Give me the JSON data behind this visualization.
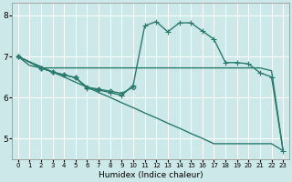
{
  "xlabel": "Humidex (Indice chaleur)",
  "background_color": "#cce8e8",
  "grid_color": "#ffffff",
  "line_color": "#2a7a6e",
  "xlim": [
    -0.5,
    23.5
  ],
  "ylim": [
    4.5,
    8.3
  ],
  "yticks": [
    5,
    6,
    7,
    8
  ],
  "xticks": [
    0,
    1,
    2,
    3,
    4,
    5,
    6,
    7,
    8,
    9,
    10,
    11,
    12,
    13,
    14,
    15,
    16,
    17,
    18,
    19,
    20,
    21,
    22,
    23
  ],
  "series": [
    {
      "x": [
        0,
        1,
        2,
        3,
        4,
        5,
        6,
        7,
        8,
        9,
        10,
        11,
        12,
        13,
        14,
        15,
        16,
        17,
        18,
        19,
        20,
        21,
        22,
        23
      ],
      "y": [
        7.0,
        6.87,
        6.75,
        6.62,
        6.5,
        6.37,
        6.25,
        6.12,
        6.0,
        5.87,
        5.75,
        5.62,
        5.5,
        5.37,
        5.25,
        5.12,
        5.0,
        4.87,
        4.87,
        4.87,
        4.87,
        4.87,
        4.87,
        4.7
      ],
      "marker": null,
      "linewidth": 1.0
    },
    {
      "x": [
        0,
        1,
        2,
        3,
        4,
        5,
        6,
        7,
        8,
        9,
        10,
        11,
        12,
        13,
        14,
        15,
        16,
        17,
        18,
        19,
        20,
        21,
        22,
        23
      ],
      "y": [
        7.0,
        6.78,
        6.72,
        6.72,
        6.72,
        6.72,
        6.72,
        6.72,
        6.72,
        6.72,
        6.72,
        6.72,
        6.72,
        6.72,
        6.72,
        6.72,
        6.72,
        6.72,
        6.72,
        6.72,
        6.72,
        6.72,
        6.65,
        4.7
      ],
      "marker": null,
      "linewidth": 1.0
    },
    {
      "x": [
        0,
        2,
        3,
        4,
        5,
        6,
        7,
        8,
        9,
        10
      ],
      "y": [
        7.0,
        6.72,
        6.62,
        6.55,
        6.48,
        6.25,
        6.2,
        6.15,
        6.1,
        6.25
      ],
      "marker": "D",
      "linewidth": 1.0
    },
    {
      "x": [
        0,
        2,
        3,
        4,
        5,
        6,
        7,
        8,
        9,
        10,
        11,
        12,
        13,
        14,
        15,
        16,
        17,
        18,
        19,
        20,
        21,
        22,
        23
      ],
      "y": [
        7.0,
        6.72,
        6.62,
        6.55,
        6.48,
        6.22,
        6.18,
        6.12,
        6.05,
        6.3,
        7.75,
        7.85,
        7.6,
        7.82,
        7.82,
        7.62,
        7.42,
        6.85,
        6.85,
        6.82,
        6.6,
        6.5,
        4.7
      ],
      "marker": "+",
      "linewidth": 1.0
    }
  ]
}
